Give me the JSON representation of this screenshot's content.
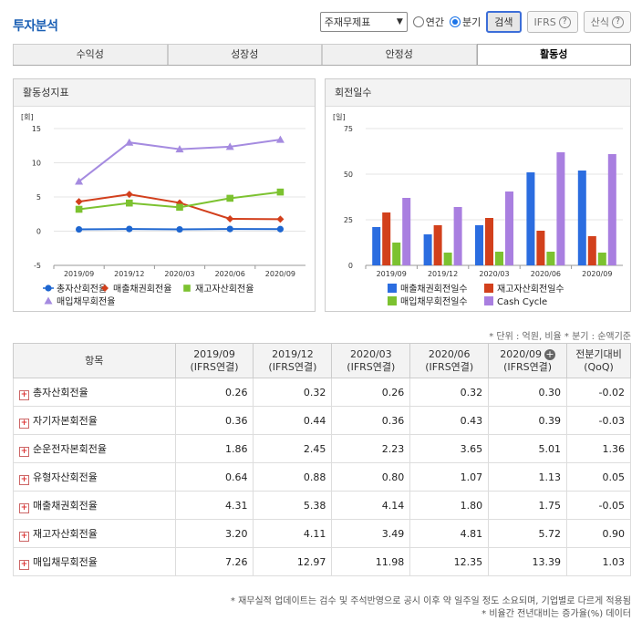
{
  "page_title": "투자분석",
  "controls": {
    "select_value": "주재무제표",
    "radio_annual": "연간",
    "radio_quarter": "분기",
    "search_label": "검색",
    "ifrs_label": "IFRS",
    "formula_label": "산식"
  },
  "tabs": [
    {
      "label": "수익성"
    },
    {
      "label": "성장성"
    },
    {
      "label": "안정성"
    },
    {
      "label": "활동성"
    }
  ],
  "left_panel": {
    "title": "활동성지표",
    "unit": "[회]"
  },
  "right_panel": {
    "title": "회전일수",
    "unit": "[일]"
  },
  "chart_data": [
    {
      "type": "line",
      "title": "활동성지표",
      "ylabel": "[회]",
      "ylim": [
        -5,
        15
      ],
      "yticks": [
        -5,
        0,
        5,
        10,
        15
      ],
      "categories": [
        "2019/09",
        "2019/12",
        "2020/03",
        "2020/06",
        "2020/09"
      ],
      "series": [
        {
          "name": "총자산회전율",
          "color": "#1e66d0",
          "marker": "circle",
          "values": [
            0.26,
            0.32,
            0.26,
            0.32,
            0.3
          ]
        },
        {
          "name": "매출채권회전율",
          "color": "#d23f1c",
          "marker": "diamond",
          "values": [
            4.31,
            5.38,
            4.14,
            1.8,
            1.75
          ]
        },
        {
          "name": "재고자산회전율",
          "color": "#7cc230",
          "marker": "square",
          "values": [
            3.2,
            4.11,
            3.49,
            4.81,
            5.72
          ]
        },
        {
          "name": "매입채무회전율",
          "color": "#a58be0",
          "marker": "triangle",
          "values": [
            7.26,
            12.97,
            11.98,
            12.35,
            13.39
          ]
        }
      ]
    },
    {
      "type": "bar",
      "title": "회전일수",
      "ylabel": "[일]",
      "ylim": [
        0,
        75
      ],
      "yticks": [
        0,
        25,
        50,
        75
      ],
      "categories": [
        "2019/09",
        "2019/12",
        "2020/03",
        "2020/06",
        "2020/09"
      ],
      "series": [
        {
          "name": "매출채권회전일수",
          "color": "#2b6de0",
          "values": [
            21,
            17,
            22,
            51,
            52
          ]
        },
        {
          "name": "재고자산회전일수",
          "color": "#d2401c",
          "values": [
            29,
            22,
            26,
            19,
            16
          ]
        },
        {
          "name": "매입채무회전일수",
          "color": "#7cc230",
          "values": [
            12.5,
            7,
            7.5,
            7.5,
            7
          ]
        },
        {
          "name": "Cash Cycle",
          "color": "#a97fe0",
          "values": [
            37,
            32,
            40.5,
            62,
            61
          ]
        }
      ]
    }
  ],
  "note_top": "* 단위 : 억원, 비율 * 분기 : 순액기준",
  "table": {
    "header_item": "항목",
    "columns": [
      {
        "period": "2019/09",
        "sub": "(IFRS연결)"
      },
      {
        "period": "2019/12",
        "sub": "(IFRS연결)"
      },
      {
        "period": "2020/03",
        "sub": "(IFRS연결)"
      },
      {
        "period": "2020/06",
        "sub": "(IFRS연결)"
      },
      {
        "period": "2020/09",
        "sub": "(IFRS연결)"
      }
    ],
    "last_col": {
      "label": "전분기대비",
      "sub": "(QoQ)"
    },
    "rows": [
      {
        "name": "총자산회전율",
        "values": [
          "0.26",
          "0.32",
          "0.26",
          "0.32",
          "0.30"
        ],
        "qoq": "-0.02"
      },
      {
        "name": "자기자본회전율",
        "values": [
          "0.36",
          "0.44",
          "0.36",
          "0.43",
          "0.39"
        ],
        "qoq": "-0.03"
      },
      {
        "name": "순운전자본회전율",
        "values": [
          "1.86",
          "2.45",
          "2.23",
          "3.65",
          "5.01"
        ],
        "qoq": "1.36"
      },
      {
        "name": "유형자산회전율",
        "values": [
          "0.64",
          "0.88",
          "0.80",
          "1.07",
          "1.13"
        ],
        "qoq": "0.05"
      },
      {
        "name": "매출채권회전율",
        "values": [
          "4.31",
          "5.38",
          "4.14",
          "1.80",
          "1.75"
        ],
        "qoq": "-0.05"
      },
      {
        "name": "재고자산회전율",
        "values": [
          "3.20",
          "4.11",
          "3.49",
          "4.81",
          "5.72"
        ],
        "qoq": "0.90"
      },
      {
        "name": "매입채무회전율",
        "values": [
          "7.26",
          "12.97",
          "11.98",
          "12.35",
          "13.39"
        ],
        "qoq": "1.03"
      }
    ]
  },
  "footnotes": [
    "* 재무실적 업데이트는 검수 및 주석반영으로 공시 이후 약 일주일 정도 소요되며, 기업별로 다르게 적용됨",
    "* 비율간 전년대비는 증가율(%) 데이터"
  ]
}
